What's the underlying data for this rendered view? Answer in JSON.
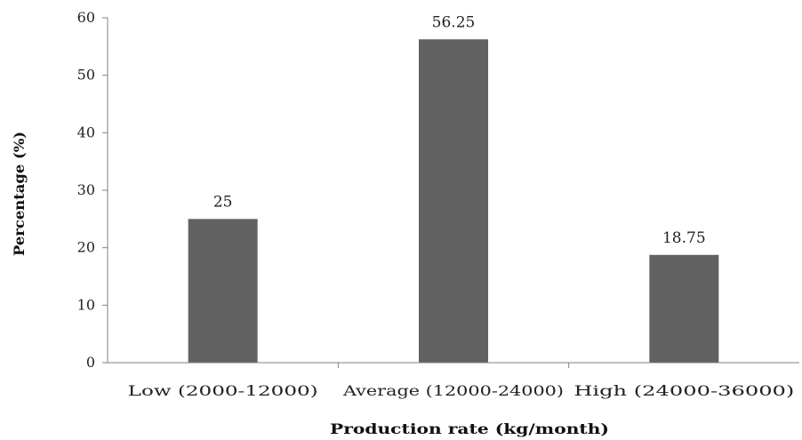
{
  "chart_data": {
    "type": "bar",
    "title": "",
    "xlabel": "Production rate (kg/month)",
    "ylabel": "Percentage (%)",
    "categories": [
      "Low (2000-12000)",
      "Average (12000-24000)",
      "High (24000-36000)"
    ],
    "values": [
      25,
      56.25,
      18.75
    ],
    "data_labels": [
      "25",
      "56.25",
      "18.75"
    ],
    "ylim": [
      0,
      60
    ],
    "yticks": [
      "0",
      "10",
      "20",
      "30",
      "40",
      "50",
      "60"
    ],
    "grid": false,
    "legend": "none",
    "bar_color": "#616161"
  }
}
